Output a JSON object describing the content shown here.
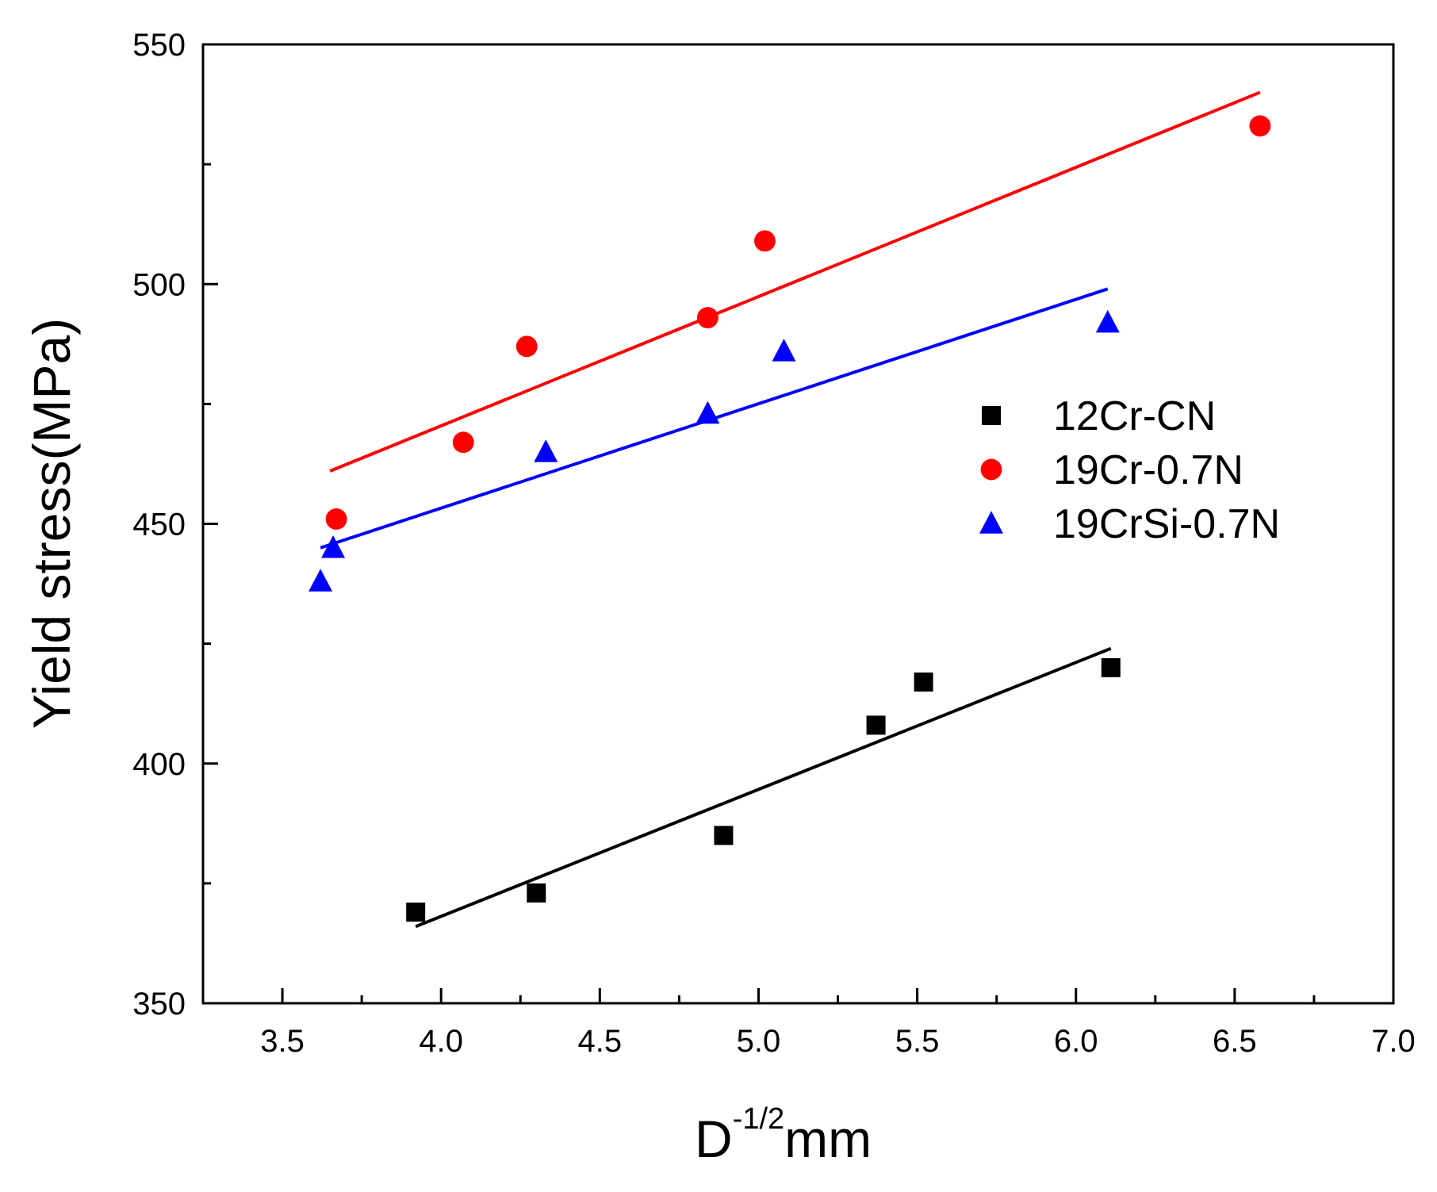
{
  "chart_data": {
    "type": "scatter",
    "title": "",
    "xlabel": {
      "base": "D",
      "superscript": "-1/2",
      "unit": "mm"
    },
    "ylabel": "Yield stress(MPa)",
    "xlim": [
      3.25,
      7.0
    ],
    "ylim": [
      350,
      550
    ],
    "x_ticks": [
      3.5,
      4.0,
      4.5,
      5.0,
      5.5,
      6.0,
      6.5,
      7.0
    ],
    "x_tick_labels": [
      "3.5",
      "4.0",
      "4.5",
      "5.0",
      "5.5",
      "6.0",
      "6.5",
      "7.0"
    ],
    "x_minor_ticks": [
      3.75,
      4.25,
      4.75,
      5.25,
      5.75,
      6.25,
      6.75
    ],
    "y_ticks": [
      350,
      400,
      450,
      500,
      550
    ],
    "y_tick_labels": [
      "350",
      "400",
      "450",
      "500",
      "550"
    ],
    "y_minor_ticks": [
      375,
      425,
      475,
      525
    ],
    "grid": false,
    "legend_position": "right-middle",
    "series": [
      {
        "name": "12Cr-CN",
        "marker": "square",
        "color": "#000000",
        "points": [
          {
            "x": 3.92,
            "y": 369
          },
          {
            "x": 4.3,
            "y": 373
          },
          {
            "x": 4.89,
            "y": 385
          },
          {
            "x": 5.37,
            "y": 408
          },
          {
            "x": 5.52,
            "y": 417
          },
          {
            "x": 6.11,
            "y": 420
          }
        ],
        "fit": {
          "x1": 3.92,
          "y1": 366,
          "x2": 6.11,
          "y2": 424
        }
      },
      {
        "name": "19Cr-0.7N",
        "marker": "circle",
        "color": "#ff0000",
        "points": [
          {
            "x": 3.67,
            "y": 451
          },
          {
            "x": 4.07,
            "y": 467
          },
          {
            "x": 4.27,
            "y": 487
          },
          {
            "x": 4.84,
            "y": 493
          },
          {
            "x": 5.02,
            "y": 509
          },
          {
            "x": 6.58,
            "y": 533
          }
        ],
        "fit": {
          "x1": 3.65,
          "y1": 461,
          "x2": 6.58,
          "y2": 540
        }
      },
      {
        "name": "19CrSi-0.7N",
        "marker": "triangle",
        "color": "#0000ff",
        "points": [
          {
            "x": 3.62,
            "y": 438
          },
          {
            "x": 3.66,
            "y": 445
          },
          {
            "x": 4.33,
            "y": 465
          },
          {
            "x": 4.84,
            "y": 473
          },
          {
            "x": 5.08,
            "y": 486
          },
          {
            "x": 6.1,
            "y": 492
          }
        ],
        "fit": {
          "x1": 3.62,
          "y1": 445,
          "x2": 6.1,
          "y2": 499
        }
      }
    ]
  }
}
